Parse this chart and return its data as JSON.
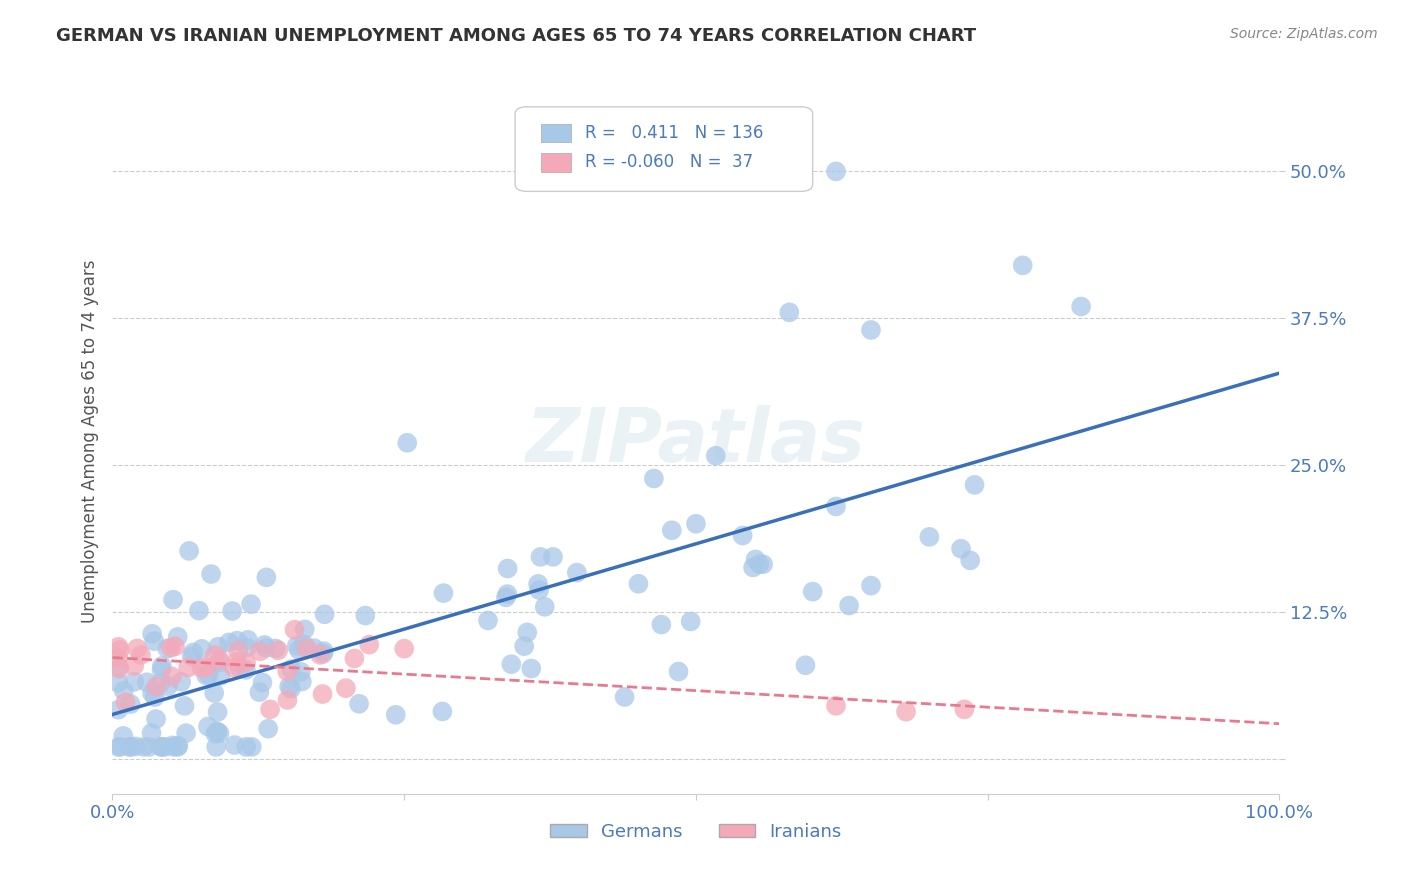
{
  "title": "GERMAN VS IRANIAN UNEMPLOYMENT AMONG AGES 65 TO 74 YEARS CORRELATION CHART",
  "source": "Source: ZipAtlas.com",
  "ylabel": "Unemployment Among Ages 65 to 74 years",
  "xlim": [
    0.0,
    1.0
  ],
  "ylim": [
    -0.03,
    0.57
  ],
  "yticks": [
    0.0,
    0.125,
    0.25,
    0.375,
    0.5
  ],
  "yticklabels": [
    "",
    "12.5%",
    "25.0%",
    "37.5%",
    "50.0%"
  ],
  "xticks": [
    0.0,
    0.25,
    0.5,
    0.75,
    1.0
  ],
  "xticklabels": [
    "0.0%",
    "",
    "",
    "",
    "100.0%"
  ],
  "legend_r_german": "0.411",
  "legend_n_german": "136",
  "legend_r_iranian": "-0.060",
  "legend_n_iranian": "37",
  "german_color": "#a8c8e8",
  "iranian_color": "#f4a8b8",
  "german_line_color": "#3a6fba",
  "iranian_line_color": "#e87a90",
  "background_color": "#ffffff",
  "grid_color": "#cccccc",
  "axis_label_color": "#4a7abf",
  "tick_label_color": "#4a7abf"
}
